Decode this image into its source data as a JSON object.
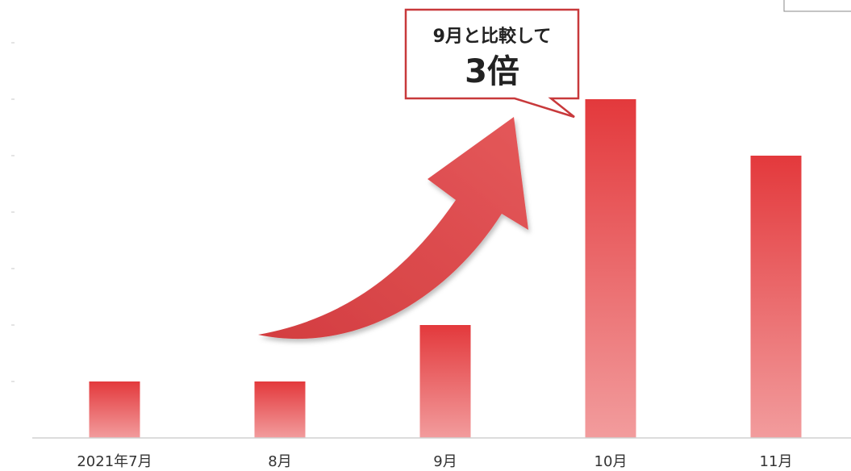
{
  "chart_data": {
    "type": "bar",
    "categories": [
      "2021年7月",
      "8月",
      "9月",
      "10月",
      "11月"
    ],
    "values": [
      1,
      1,
      2,
      6,
      5
    ],
    "ylim": [
      0,
      6.5
    ],
    "grid": false,
    "bar_color": "#e3393c",
    "annotation": {
      "line1": "9月と比較して",
      "line2": "3倍"
    }
  }
}
